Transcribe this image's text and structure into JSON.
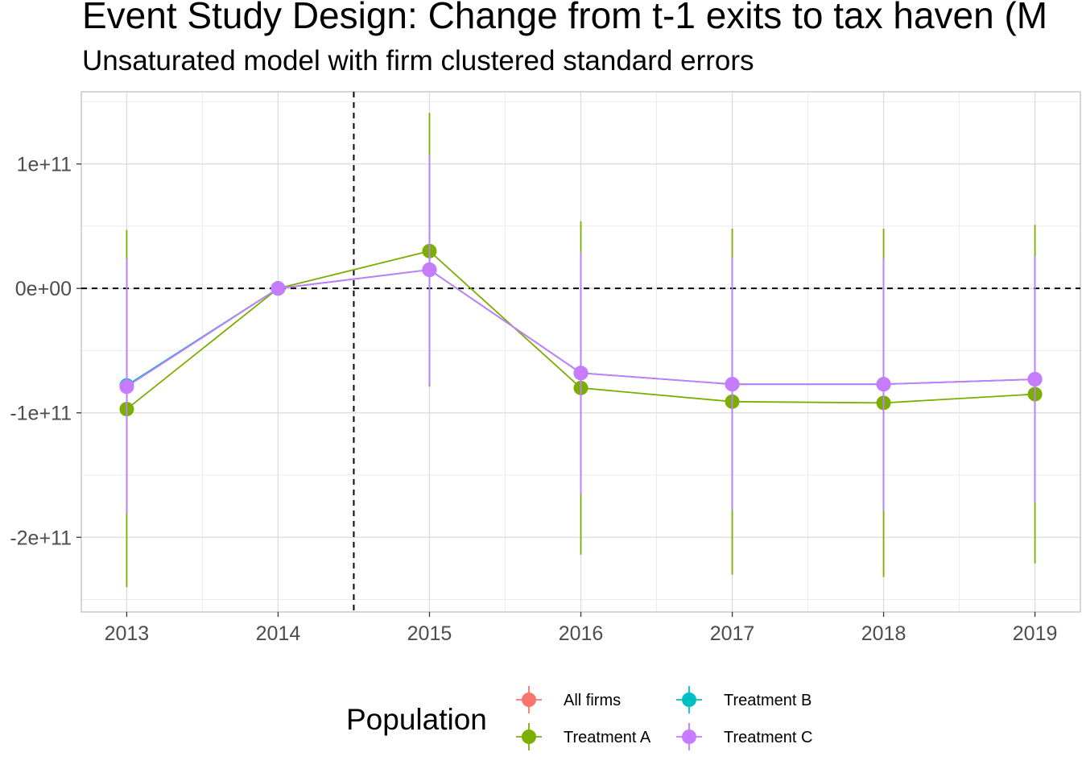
{
  "chart_data": {
    "type": "line",
    "title": "Event Study Design: Change from t-1 exits to tax haven (M",
    "subtitle": "Unsaturated model with firm clustered standard errors",
    "xlabel": "",
    "ylabel": "",
    "categories": [
      "2013",
      "2014",
      "2015",
      "2016",
      "2017",
      "2018",
      "2019"
    ],
    "x": [
      2013,
      2014,
      2015,
      2016,
      2017,
      2018,
      2019
    ],
    "xlim": [
      2012.7,
      2019.3
    ],
    "ylim": [
      -260000000000,
      158000000000
    ],
    "y_ticks": [
      100000000000,
      0,
      -100000000000,
      -200000000000
    ],
    "y_tick_labels": [
      "1e+11",
      "0e+00",
      "-1e+11",
      "-2e+11"
    ],
    "reference_lines": {
      "vertical_x": 2014.5,
      "horizontal_y": 0,
      "style": "dashed"
    },
    "grid": true,
    "legend": {
      "title": "Population",
      "position": "bottom"
    },
    "series": [
      {
        "name": "All firms",
        "color": "#F8766D",
        "values": [
          -78000000000,
          0,
          15000000000,
          -68000000000,
          -77000000000,
          -77000000000,
          -73000000000
        ],
        "lower": [
          -180000000000,
          0,
          -78000000000,
          -165000000000,
          -178000000000,
          -179000000000,
          -172000000000
        ],
        "upper": [
          24000000000,
          0,
          107000000000,
          29000000000,
          25000000000,
          24000000000,
          26000000000
        ]
      },
      {
        "name": "Treatment A",
        "color": "#7CAE00",
        "values": [
          -97000000000,
          0,
          30000000000,
          -80000000000,
          -91000000000,
          -92000000000,
          -85000000000
        ],
        "lower": [
          -240000000000,
          0,
          -79000000000,
          -214000000000,
          -230000000000,
          -232000000000,
          -221000000000
        ],
        "upper": [
          47000000000,
          0,
          141000000000,
          54000000000,
          48000000000,
          48000000000,
          51000000000
        ]
      },
      {
        "name": "Treatment B",
        "color": "#00BFC4",
        "values": [
          -78000000000,
          0,
          15000000000,
          -68000000000,
          -77000000000,
          -77000000000,
          -73000000000
        ],
        "lower": [
          -180000000000,
          0,
          -78000000000,
          -165000000000,
          -178000000000,
          -179000000000,
          -172000000000
        ],
        "upper": [
          24000000000,
          0,
          107000000000,
          29000000000,
          25000000000,
          24000000000,
          26000000000
        ]
      },
      {
        "name": "Treatment C",
        "color": "#C77CFF",
        "values": [
          -79000000000,
          0,
          15000000000,
          -68000000000,
          -77000000000,
          -77000000000,
          -73000000000
        ],
        "lower": [
          -181000000000,
          0,
          -78000000000,
          -165000000000,
          -178000000000,
          -179000000000,
          -172000000000
        ],
        "upper": [
          24000000000,
          0,
          107000000000,
          29000000000,
          25000000000,
          24000000000,
          26000000000
        ]
      }
    ]
  }
}
